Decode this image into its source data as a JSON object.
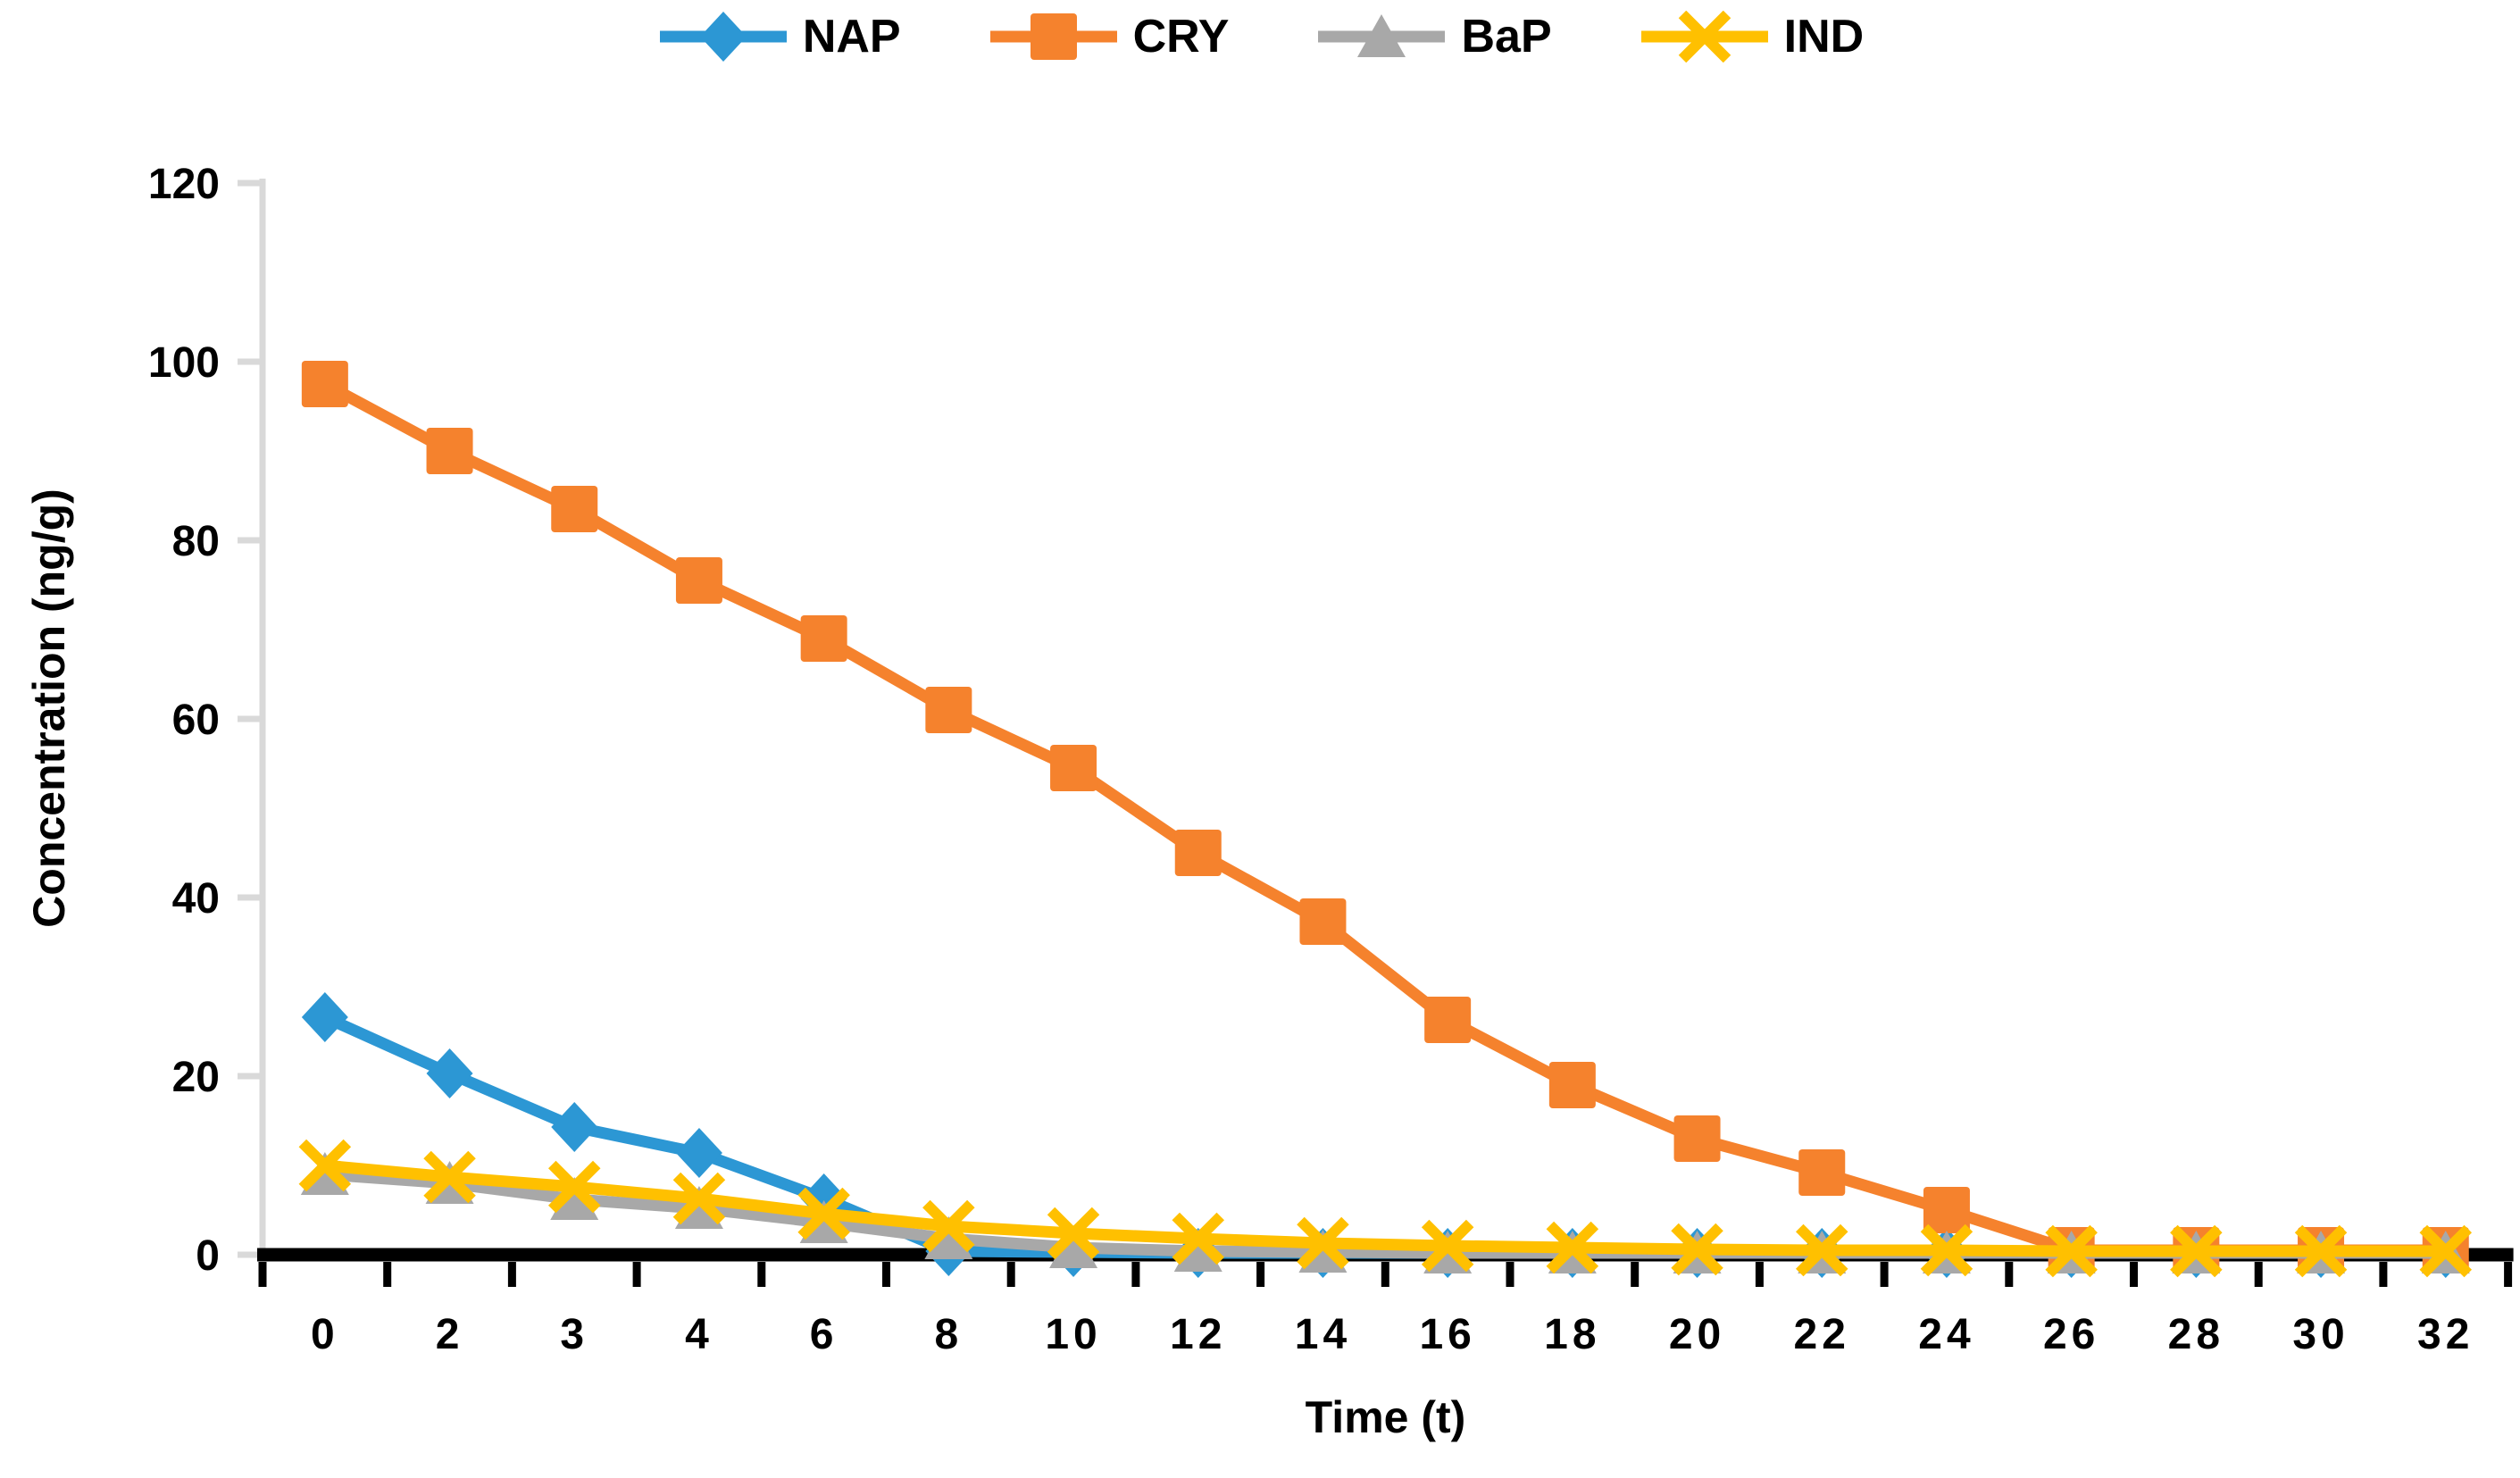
{
  "chart_data": {
    "type": "line",
    "title": "",
    "xlabel": "Time (t)",
    "ylabel": "Concentration (ng/g)",
    "categories": [
      "0",
      "2",
      "3",
      "4",
      "6",
      "8",
      "10",
      "12",
      "14",
      "16",
      "18",
      "20",
      "22",
      "24",
      "26",
      "28",
      "30",
      "32"
    ],
    "yticks": [
      0,
      20,
      40,
      60,
      80,
      100,
      120
    ],
    "ylim": [
      0,
      120
    ],
    "grid": "off",
    "legend_position": "top-center",
    "background_color": "#ffffff",
    "axis_colors": {
      "y_axis": "#d9d9d9",
      "x_axis": "#000000",
      "text": "#000000"
    },
    "series": [
      {
        "name": "NAP",
        "color": "#2c97d4",
        "marker": "diamond",
        "values": [
          26.6,
          20.3,
          14.3,
          11.4,
          6.3,
          0.4,
          0.3,
          0.2,
          0.2,
          0.2,
          0.2,
          0.2,
          0.2,
          0.2,
          0.2,
          0.2,
          0.2,
          0.2
        ]
      },
      {
        "name": "CRY",
        "color": "#f5822d",
        "marker": "square",
        "values": [
          97.5,
          90.0,
          83.5,
          75.5,
          69.0,
          61.0,
          54.5,
          45.0,
          37.3,
          26.3,
          19.0,
          13.0,
          9.2,
          5.0,
          0.5,
          0.5,
          0.5,
          0.5
        ]
      },
      {
        "name": "BaP",
        "color": "#a8a8a8",
        "marker": "triangle",
        "values": [
          9.0,
          8.0,
          6.2,
          5.2,
          3.6,
          1.8,
          0.8,
          0.4,
          0.3,
          0.2,
          0.2,
          0.2,
          0.2,
          0.2,
          0.2,
          0.2,
          0.2,
          0.2
        ]
      },
      {
        "name": "IND",
        "color": "#ffc000",
        "marker": "x",
        "values": [
          10.0,
          8.7,
          7.6,
          6.3,
          4.6,
          3.2,
          2.4,
          1.8,
          1.3,
          1.0,
          0.8,
          0.6,
          0.5,
          0.5,
          0.4,
          0.4,
          0.4,
          0.4
        ]
      }
    ]
  }
}
